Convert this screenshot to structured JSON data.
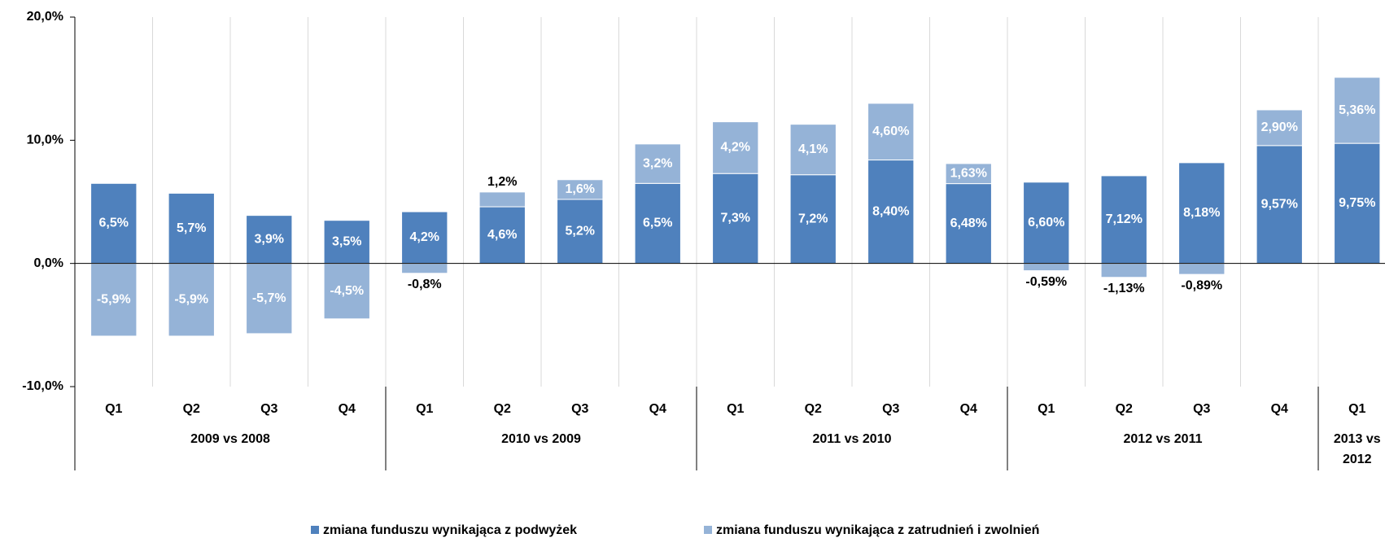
{
  "chart_data": {
    "type": "stacked-bar",
    "groups": [
      {
        "name": "2009 vs 2008",
        "categories": [
          "Q1",
          "Q2",
          "Q3",
          "Q4"
        ]
      },
      {
        "name": "2010 vs 2009",
        "categories": [
          "Q1",
          "Q2",
          "Q3",
          "Q4"
        ]
      },
      {
        "name": "2011 vs 2010",
        "categories": [
          "Q1",
          "Q2",
          "Q3",
          "Q4"
        ]
      },
      {
        "name": "2012 vs 2011",
        "categories": [
          "Q1",
          "Q2",
          "Q3",
          "Q4"
        ]
      },
      {
        "name": "2013 vs 2012",
        "categories": [
          "Q1"
        ]
      }
    ],
    "series": [
      {
        "name": "zmiana funduszu wynikająca z podwyżek",
        "color": "#4f81bd",
        "values": [
          6.5,
          5.7,
          3.9,
          3.5,
          4.2,
          4.6,
          5.2,
          6.5,
          7.3,
          7.2,
          8.4,
          6.48,
          6.6,
          7.12,
          8.18,
          9.57,
          9.75
        ],
        "value_labels": [
          "6,5%",
          "5,7%",
          "3,9%",
          "3,5%",
          "4,2%",
          "4,6%",
          "5,2%",
          "6,5%",
          "7,3%",
          "7,2%",
          "8,40%",
          "6,48%",
          "6,60%",
          "7,12%",
          "8,18%",
          "9,57%",
          "9,75%"
        ]
      },
      {
        "name": "zmiana funduszu wynikająca z zatrudnień i zwolnień",
        "color": "#95b3d7",
        "values": [
          -5.9,
          -5.9,
          -5.7,
          -4.5,
          -0.8,
          1.2,
          1.6,
          3.2,
          4.2,
          4.1,
          4.6,
          1.63,
          -0.59,
          -1.13,
          -0.89,
          2.9,
          5.36
        ],
        "value_labels": [
          "-5,9%",
          "-5,9%",
          "-5,7%",
          "-4,5%",
          "-0,8%",
          "1,2%",
          "1,6%",
          "3,2%",
          "4,2%",
          "4,1%",
          "4,60%",
          "1,63%",
          "-0,59%",
          "-1,13%",
          "-0,89%",
          "2,90%",
          "5,36%"
        ]
      }
    ],
    "ylim": [
      -10,
      20
    ],
    "yticks": [
      {
        "value": -10,
        "label": "-10,0%"
      },
      {
        "value": 0,
        "label": "0,0%"
      },
      {
        "value": 10,
        "label": "10,0%"
      },
      {
        "value": 20,
        "label": "20,0%"
      }
    ],
    "grid": true,
    "legend": "bottom"
  }
}
